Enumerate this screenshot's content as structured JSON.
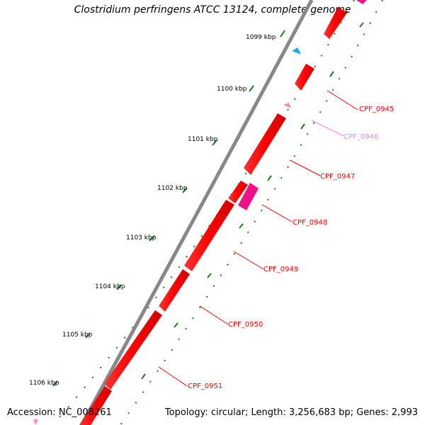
{
  "title": "Clostridium perfringens ATCC 13124, complete genome",
  "accession": "Accession: NC_008261",
  "summary": "Topology: circular; Length: 3,256,683 bp; Genes: 2,993",
  "ticks": [
    "1099 kbp",
    "1100 kbp",
    "1101 kbp",
    "1102 kbp",
    "1103 kbp",
    "1104 kbp",
    "1105 kbp",
    "1106 kbp"
  ],
  "genes": [
    {
      "label": "CPF_0945",
      "color": "#ff0000"
    },
    {
      "label": "CPF_0946",
      "color": "#ff88c0"
    },
    {
      "label": "CPF_0947",
      "color": "#ff0000"
    },
    {
      "label": "CPF_0948",
      "color": "#ee1188"
    },
    {
      "label": "CPF_0949",
      "color": "#ff0000"
    },
    {
      "label": "CPF_0950",
      "color": "#ff0000"
    },
    {
      "label": "CPF_0951",
      "color": "#ff0000"
    }
  ],
  "colors": {
    "backbone": "#888888",
    "tick_mark": "#1a7a1a",
    "gene": "#ff0000",
    "label_line": "#ff0000"
  }
}
